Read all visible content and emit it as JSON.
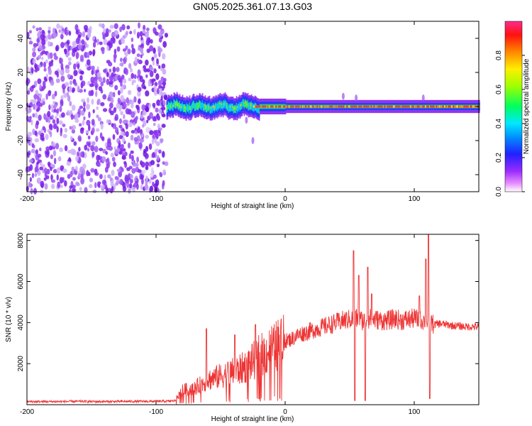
{
  "title": "GN05.2025.361.07.13.G03",
  "chart_data": [
    {
      "type": "heatmap",
      "title": "GN05.2025.361.07.13.G03",
      "xlabel": "Height of straight line (km)",
      "ylabel": "Frequency (Hz)",
      "xlim": [
        -200,
        150
      ],
      "ylim": [
        -50,
        50
      ],
      "xticks": [
        "-200",
        "-100",
        "0",
        "100"
      ],
      "yticks": [
        "-40",
        "-20",
        "0",
        "20",
        "40"
      ],
      "colorbar": {
        "label": "Normalized spectral amplitude",
        "range": [
          0,
          1
        ],
        "ticks": [
          "0.0",
          "0.2",
          "0.4",
          "0.6",
          "0.8"
        ],
        "colors": [
          "#ffffff",
          "#e040ff",
          "#8000ff",
          "#0000ff",
          "#00e0ff",
          "#00ff40",
          "#ffff00",
          "#ff8000",
          "#ff0000",
          "#ff0060"
        ]
      },
      "regions": [
        {
          "name": "noise",
          "x_range": [
            -200,
            -92
          ],
          "f_range": [
            -50,
            48
          ],
          "amplitude": 0.05
        },
        {
          "name": "carrier",
          "x_range": [
            -92,
            150
          ],
          "center_hz": 0,
          "amplitude_range": [
            0.5,
            1.0
          ]
        }
      ]
    },
    {
      "type": "line",
      "xlabel": "Height of straight line (km)",
      "ylabel": "SNR (10 * v/v)",
      "xlim": [
        -200,
        150
      ],
      "ylim": [
        0,
        8300
      ],
      "xticks": [
        "-200",
        "-100",
        "0",
        "100"
      ],
      "yticks": [
        "2000",
        "4000",
        "6000",
        "8000"
      ],
      "series": [
        {
          "name": "SNR",
          "color": "#ee3333",
          "x": [
            -200,
            -180,
            -160,
            -140,
            -120,
            -100,
            -90,
            -85,
            -80,
            -75,
            -70,
            -65,
            -60,
            -55,
            -50,
            -45,
            -40,
            -35,
            -30,
            -25,
            -20,
            -15,
            -10,
            -5,
            0,
            5,
            10,
            15,
            20,
            25,
            30,
            35,
            40,
            45,
            50,
            55,
            60,
            65,
            70,
            75,
            80,
            85,
            90,
            95,
            100,
            105,
            110,
            112,
            115,
            120,
            130,
            140,
            150
          ],
          "values": [
            150,
            150,
            160,
            150,
            160,
            160,
            170,
            200,
            700,
            750,
            800,
            1000,
            1200,
            1300,
            1400,
            1500,
            1600,
            1700,
            1900,
            2100,
            2400,
            2500,
            2800,
            2900,
            3100,
            3200,
            3400,
            3500,
            3600,
            3700,
            3800,
            3900,
            4000,
            4100,
            4150,
            4200,
            4100,
            4200,
            4150,
            4100,
            4100,
            4200,
            4100,
            4150,
            4200,
            4100,
            4100,
            4100,
            3900,
            3950,
            3850,
            3800,
            3800
          ],
          "spikes": [
            {
              "x": 53,
              "value": 7500
            },
            {
              "x": 54,
              "value": 200
            },
            {
              "x": 57,
              "value": 6300
            },
            {
              "x": 62,
              "value": 200
            },
            {
              "x": 64,
              "value": 6700
            },
            {
              "x": 67,
              "value": 5400
            },
            {
              "x": 111,
              "value": 8300
            },
            {
              "x": 112,
              "value": 300
            },
            {
              "x": 109,
              "value": 7100
            },
            {
              "x": 104,
              "value": 5300
            },
            {
              "x": -61,
              "value": 3700
            },
            {
              "x": -39,
              "value": 3400
            },
            {
              "x": -23,
              "value": 3900
            }
          ]
        }
      ]
    }
  ]
}
